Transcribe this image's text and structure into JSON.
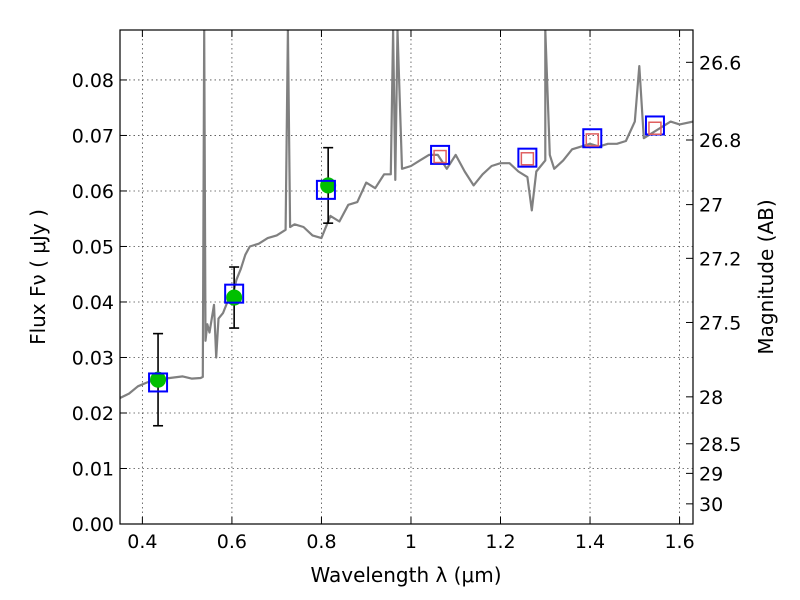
{
  "chart_data": {
    "type": "scatter",
    "title": "",
    "xlabel": "Wavelength  λ (μm)",
    "ylabel": "Flux  Fν  ( μJy )",
    "ylabel_right": "Magnitude (AB)",
    "xlim": [
      0.35,
      1.63
    ],
    "ylim": [
      0.0,
      0.089
    ],
    "grid": true,
    "x_ticks": [
      0.4,
      0.6,
      0.8,
      1.0,
      1.2,
      1.4,
      1.6
    ],
    "x_tick_labels": [
      "0.4",
      "0.6",
      "0.8",
      "1",
      "1.2",
      "1.4",
      "1.6"
    ],
    "y_ticks": [
      0.0,
      0.01,
      0.02,
      0.03,
      0.04,
      0.05,
      0.06,
      0.07,
      0.08
    ],
    "y_tick_labels": [
      "0.00",
      "0.01",
      "0.02",
      "0.03",
      "0.04",
      "0.05",
      "0.06",
      "0.07",
      "0.08"
    ],
    "mag_ticks": [
      26.6,
      26.8,
      27,
      27.2,
      27.5,
      28,
      28.5,
      29,
      30
    ],
    "mag_tick_labels": [
      "26.6",
      "26.8",
      "27",
      "27.2",
      "27.5",
      "28",
      "28.5",
      "29",
      "30"
    ],
    "series": [
      {
        "style": "line",
        "color": "#808080",
        "x": [
          0.35,
          0.37,
          0.39,
          0.41,
          0.43,
          0.45,
          0.47,
          0.49,
          0.51,
          0.53,
          0.535,
          0.538,
          0.541,
          0.545,
          0.55,
          0.56,
          0.565,
          0.57,
          0.58,
          0.59,
          0.6,
          0.61,
          0.62,
          0.63,
          0.64,
          0.66,
          0.68,
          0.7,
          0.72,
          0.725,
          0.73,
          0.74,
          0.76,
          0.78,
          0.8,
          0.82,
          0.84,
          0.86,
          0.88,
          0.9,
          0.92,
          0.94,
          0.955,
          0.96,
          0.965,
          0.97,
          0.98,
          1.0,
          1.02,
          1.04,
          1.06,
          1.08,
          1.1,
          1.12,
          1.14,
          1.16,
          1.18,
          1.2,
          1.22,
          1.24,
          1.26,
          1.27,
          1.28,
          1.3,
          1.3,
          1.31,
          1.32,
          1.34,
          1.36,
          1.38,
          1.4,
          1.42,
          1.44,
          1.46,
          1.48,
          1.5,
          1.51,
          1.52,
          1.54,
          1.56,
          1.58,
          1.6,
          1.63
        ],
        "y": [
          0.0227,
          0.0235,
          0.0248,
          0.0255,
          0.026,
          0.0262,
          0.0264,
          0.0266,
          0.0262,
          0.0263,
          0.0265,
          0.089,
          0.033,
          0.036,
          0.0345,
          0.0395,
          0.03,
          0.037,
          0.038,
          0.04,
          0.0405,
          0.044,
          0.046,
          0.0485,
          0.05,
          0.0505,
          0.0515,
          0.052,
          0.053,
          0.089,
          0.0535,
          0.054,
          0.0535,
          0.052,
          0.0515,
          0.0555,
          0.0545,
          0.0575,
          0.058,
          0.0615,
          0.0605,
          0.063,
          0.063,
          0.089,
          0.062,
          0.089,
          0.064,
          0.0645,
          0.0655,
          0.0665,
          0.0665,
          0.064,
          0.0665,
          0.0635,
          0.061,
          0.063,
          0.0645,
          0.065,
          0.065,
          0.0635,
          0.0625,
          0.0565,
          0.0635,
          0.0655,
          0.089,
          0.0665,
          0.064,
          0.0655,
          0.0675,
          0.068,
          0.0685,
          0.068,
          0.0685,
          0.0685,
          0.069,
          0.0725,
          0.0825,
          0.0695,
          0.0705,
          0.0715,
          0.0725,
          0.072,
          0.0725
        ]
      },
      {
        "style": "points-with-errorbars",
        "color": "#00c000",
        "x": [
          0.435,
          0.605,
          0.815
        ],
        "y": [
          0.026,
          0.0408,
          0.061
        ],
        "yerr": [
          0.0083,
          0.0055,
          0.0068
        ]
      },
      {
        "style": "open-squares",
        "color": "#0000ff",
        "x": [
          0.435,
          0.605,
          0.81,
          1.065,
          1.26,
          1.405,
          1.545
        ],
        "y": [
          0.0255,
          0.0415,
          0.0602,
          0.0665,
          0.066,
          0.0695,
          0.0718
        ]
      },
      {
        "style": "small-open-squares",
        "color": "#e06060",
        "x": [
          1.065,
          1.26,
          1.405,
          1.545
        ],
        "y": [
          0.0662,
          0.0658,
          0.0692,
          0.0713
        ]
      }
    ]
  }
}
